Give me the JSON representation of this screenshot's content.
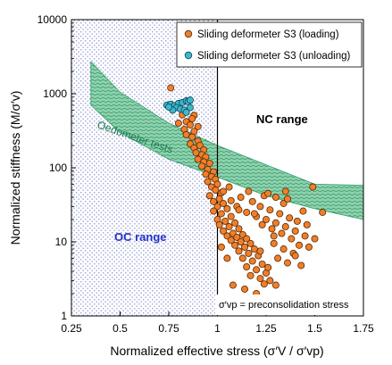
{
  "chart_data": {
    "type": "scatter",
    "title": "",
    "xlabel": "Normalized effective stress (σ′V / σ′vp)",
    "ylabel": "Normalized  stiffness (M/σ′v)",
    "xlim": [
      0.25,
      1.75
    ],
    "ylim": [
      1,
      10000
    ],
    "y_scale": "log",
    "x_ticks": [
      "0.25",
      "0.5",
      "0.75",
      "1",
      "1.25",
      "1.5",
      "1.75"
    ],
    "y_ticks": [
      "1",
      "10",
      "100",
      "1000",
      "10000"
    ],
    "grid": false,
    "legend": {
      "position": "top-right"
    },
    "colors": {
      "loading": "#f07f2b",
      "unloading": "#3fb6cc",
      "band": "#5cb88a",
      "oc_hatch": "#4a55b0",
      "oc_text": "#2233cc"
    },
    "series": [
      {
        "name": "Sliding deformeter S3 (loading)",
        "marker": "circle",
        "color": "#f07f2b",
        "points": [
          [
            0.76,
            1200
          ],
          [
            0.83,
            590
          ],
          [
            0.82,
            520
          ],
          [
            0.88,
            510
          ],
          [
            0.87,
            460
          ],
          [
            0.84,
            420
          ],
          [
            0.8,
            400
          ],
          [
            0.86,
            380
          ],
          [
            0.9,
            360
          ],
          [
            0.83,
            330
          ],
          [
            0.88,
            310
          ],
          [
            0.84,
            280
          ],
          [
            0.87,
            260
          ],
          [
            0.9,
            230
          ],
          [
            0.86,
            210
          ],
          [
            0.91,
            200
          ],
          [
            0.88,
            185
          ],
          [
            0.93,
            175
          ],
          [
            0.89,
            160
          ],
          [
            0.92,
            150
          ],
          [
            0.94,
            140
          ],
          [
            0.9,
            130
          ],
          [
            0.93,
            120
          ],
          [
            0.96,
            115
          ],
          [
            0.92,
            105
          ],
          [
            0.95,
            95
          ],
          [
            0.98,
            88
          ],
          [
            0.94,
            82
          ],
          [
            0.97,
            76
          ],
          [
            0.99,
            70
          ],
          [
            0.95,
            65
          ],
          [
            1.0,
            60
          ],
          [
            0.97,
            55
          ],
          [
            0.99,
            50
          ],
          [
            1.02,
            46
          ],
          [
            0.96,
            42
          ],
          [
            1.01,
            38
          ],
          [
            0.98,
            35
          ],
          [
            1.03,
            33
          ],
          [
            1.0,
            30
          ],
          [
            1.05,
            28
          ],
          [
            0.98,
            26
          ],
          [
            1.02,
            24
          ],
          [
            1.07,
            22
          ],
          [
            1.0,
            20
          ],
          [
            1.04,
            19
          ],
          [
            1.09,
            18
          ],
          [
            1.01,
            17
          ],
          [
            1.06,
            16
          ],
          [
            1.11,
            15
          ],
          [
            1.03,
            14
          ],
          [
            1.08,
            13
          ],
          [
            1.13,
            12.5
          ],
          [
            1.05,
            12
          ],
          [
            1.1,
            11.5
          ],
          [
            1.15,
            11
          ],
          [
            1.07,
            10.5
          ],
          [
            1.12,
            10
          ],
          [
            1.17,
            9.5
          ],
          [
            1.09,
            9
          ],
          [
            1.14,
            8.5
          ],
          [
            1.19,
            8
          ],
          [
            1.11,
            7.5
          ],
          [
            1.16,
            7
          ],
          [
            1.21,
            6.5
          ],
          [
            1.13,
            6
          ],
          [
            1.18,
            5.5
          ],
          [
            1.23,
            5
          ],
          [
            1.15,
            4.6
          ],
          [
            1.2,
            4.2
          ],
          [
            1.25,
            3.8
          ],
          [
            1.17,
            3.5
          ],
          [
            1.22,
            3.2
          ],
          [
            1.27,
            3.0
          ],
          [
            1.08,
            2.6
          ],
          [
            1.24,
            2.7
          ],
          [
            1.14,
            2.3
          ],
          [
            1.3,
            2.6
          ],
          [
            1.2,
            2.0
          ],
          [
            1.1,
            30
          ],
          [
            1.15,
            25
          ],
          [
            1.2,
            22
          ],
          [
            1.25,
            20
          ],
          [
            1.3,
            18
          ],
          [
            1.35,
            16
          ],
          [
            1.4,
            14
          ],
          [
            1.45,
            12
          ],
          [
            1.28,
            15
          ],
          [
            1.33,
            13
          ],
          [
            1.38,
            11
          ],
          [
            1.42,
            9
          ],
          [
            1.12,
            40
          ],
          [
            1.18,
            35
          ],
          [
            1.22,
            30
          ],
          [
            1.27,
            27
          ],
          [
            1.32,
            24
          ],
          [
            1.37,
            21
          ],
          [
            1.41,
            19
          ],
          [
            1.46,
            17
          ],
          [
            1.16,
            48
          ],
          [
            1.24,
            42
          ],
          [
            1.34,
            33
          ],
          [
            1.44,
            26
          ],
          [
            1.06,
            55
          ],
          [
            1.26,
            45
          ],
          [
            1.36,
            38
          ],
          [
            1.29,
            9.5
          ],
          [
            1.34,
            8
          ],
          [
            1.39,
            7
          ],
          [
            1.22,
            7.5
          ],
          [
            1.31,
            6
          ],
          [
            1.36,
            5.2
          ],
          [
            1.43,
            4.8
          ],
          [
            1.26,
            4.5
          ],
          [
            1.4,
            6.5
          ],
          [
            1.47,
            8.5
          ],
          [
            1.5,
            11
          ],
          [
            1.03,
            48
          ],
          [
            1.07,
            36
          ],
          [
            1.11,
            27
          ],
          [
            1.19,
            24
          ],
          [
            1.23,
            17
          ],
          [
            1.29,
            12
          ],
          [
            1.05,
            6
          ],
          [
            1.02,
            8.5
          ],
          [
            1.3,
            40
          ],
          [
            1.35,
            48
          ],
          [
            1.49,
            55
          ],
          [
            1.54,
            25
          ]
        ]
      },
      {
        "name": "Sliding deformeter S3 (unloading)",
        "marker": "circle",
        "color": "#3fb6cc",
        "points": [
          [
            0.74,
            700
          ],
          [
            0.76,
            720
          ],
          [
            0.78,
            690
          ],
          [
            0.8,
            740
          ],
          [
            0.82,
            760
          ],
          [
            0.84,
            800
          ],
          [
            0.85,
            780
          ],
          [
            0.86,
            820
          ],
          [
            0.79,
            650
          ],
          [
            0.81,
            620
          ],
          [
            0.83,
            600
          ],
          [
            0.77,
            600
          ],
          [
            0.75,
            660
          ],
          [
            0.86,
            650
          ],
          [
            0.84,
            560
          ]
        ]
      }
    ],
    "bands": [
      {
        "label": "Oedometer tests",
        "lower": [
          [
            0.35,
            700
          ],
          [
            0.5,
            300
          ],
          [
            0.75,
            130
          ],
          [
            1.0,
            75
          ],
          [
            1.25,
            42
          ],
          [
            1.5,
            28
          ],
          [
            1.75,
            20
          ]
        ],
        "upper": [
          [
            0.35,
            2700
          ],
          [
            0.5,
            1050
          ],
          [
            0.75,
            400
          ],
          [
            1.0,
            200
          ],
          [
            1.25,
            110
          ],
          [
            1.5,
            60
          ],
          [
            1.75,
            58
          ]
        ]
      }
    ],
    "vertical_line": {
      "x": 1
    },
    "regions": [
      {
        "label": "OC range",
        "x_range": [
          0.25,
          1.0
        ]
      },
      {
        "label": "NC range",
        "x_range": [
          1.0,
          1.75
        ]
      }
    ],
    "annotations": {
      "band_label": "Oedometer tests",
      "oc_label": "OC range",
      "nc_label": "NC range",
      "note": "σ′vp = preconsolidation stress"
    }
  }
}
